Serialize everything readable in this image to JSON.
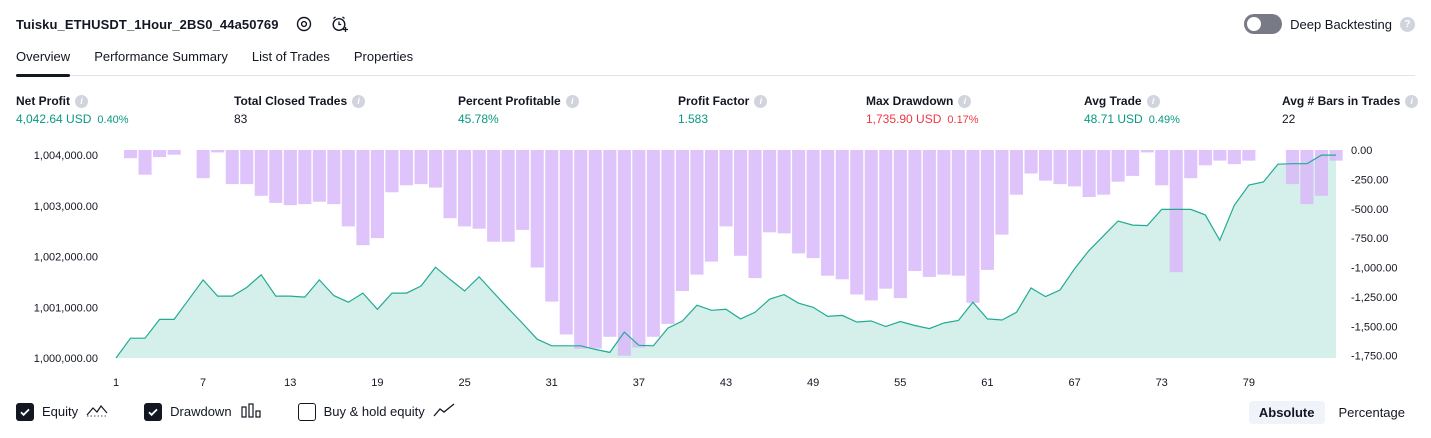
{
  "header": {
    "title": "Tuisku_ETHUSDT_1Hour_2BS0_44a50769",
    "deep_backtesting_label": "Deep Backtesting"
  },
  "tabs": [
    {
      "label": "Overview",
      "active": true
    },
    {
      "label": "Performance Summary",
      "active": false
    },
    {
      "label": "List of Trades",
      "active": false
    },
    {
      "label": "Properties",
      "active": false
    }
  ],
  "metrics": {
    "net_profit": {
      "label": "Net Profit",
      "value": "4,042.64 USD",
      "sub": "0.40%"
    },
    "total_closed_trades": {
      "label": "Total Closed Trades",
      "value": "83"
    },
    "percent_profitable": {
      "label": "Percent Profitable",
      "value": "45.78%"
    },
    "profit_factor": {
      "label": "Profit Factor",
      "value": "1.583"
    },
    "max_drawdown": {
      "label": "Max Drawdown",
      "value": "1,735.90 USD",
      "sub": "0.17%"
    },
    "avg_trade": {
      "label": "Avg Trade",
      "value": "48.71 USD",
      "sub": "0.49%"
    },
    "avg_bars": {
      "label": "Avg # Bars in Trades",
      "value": "22"
    }
  },
  "legend": {
    "equity": "Equity",
    "drawdown": "Drawdown",
    "buy_hold": "Buy & hold equity"
  },
  "mode": {
    "absolute": "Absolute",
    "percentage": "Percentage"
  },
  "colors": {
    "equity_line": "#22ab94",
    "equity_fill": "#d5efea",
    "drawdown_bar": "#d9b8fa",
    "positive": "#089981",
    "negative": "#f23645"
  },
  "chart_data": {
    "type": "area",
    "x_ticks": [
      "1",
      "7",
      "13",
      "19",
      "25",
      "31",
      "37",
      "43",
      "49",
      "55",
      "61",
      "67",
      "73",
      "79"
    ],
    "y_left_ticks": [
      "1,004,000.00",
      "1,003,000.00",
      "1,002,000.00",
      "1,001,000.00",
      "1,000,000.00"
    ],
    "y_left_values": [
      1004000,
      1003000,
      1002000,
      1001000,
      1000000
    ],
    "y_right_ticks": [
      "0.00",
      "-250.00",
      "-500.00",
      "-750.00",
      "-1,000.00",
      "-1,250.00",
      "-1,500.00",
      "-1,750.00"
    ],
    "y_right_values": [
      0,
      -250,
      -500,
      -750,
      -1000,
      -1250,
      -1500,
      -1750
    ],
    "x_range": [
      1,
      85
    ],
    "y_left_range": [
      1000000,
      1004100
    ],
    "y_right_range": [
      -1770,
      0
    ],
    "series": [
      {
        "name": "Equity",
        "values": [
          1000000,
          1000390,
          1000390,
          1000760,
          1000760,
          1001150,
          1001540,
          1001220,
          1001220,
          1001390,
          1001640,
          1001220,
          1001220,
          1001200,
          1001540,
          1001230,
          1001100,
          1001280,
          1000960,
          1001280,
          1001280,
          1001420,
          1001790,
          1001550,
          1001320,
          1001600,
          1001290,
          1000980,
          1000680,
          1000370,
          1000240,
          1000240,
          1000240,
          1000170,
          1000110,
          1000510,
          1000250,
          1000240,
          1000590,
          1000730,
          1001040,
          1000940,
          1000960,
          1000770,
          1000900,
          1001160,
          1001250,
          1001080,
          1001000,
          1000820,
          1000840,
          1000710,
          1000730,
          1000620,
          1000720,
          1000640,
          1000580,
          1000690,
          1000740,
          1001100,
          1000770,
          1000750,
          1000900,
          1001380,
          1001210,
          1001340,
          1001760,
          1002120,
          1002410,
          1002700,
          1002620,
          1002610,
          1002930,
          1002930,
          1002930,
          1002820,
          1002320,
          1003010,
          1003410,
          1003470,
          1003820,
          1003830,
          1003830,
          1004000,
          1004000
        ],
        "y_axis": "left"
      },
      {
        "name": "Drawdown",
        "values": [
          0,
          -70,
          -210,
          -60,
          -40,
          0,
          -240,
          -20,
          -290,
          -290,
          -390,
          -450,
          -470,
          -460,
          -440,
          -460,
          -650,
          -810,
          -750,
          -360,
          -300,
          -290,
          -320,
          -580,
          -650,
          -670,
          -780,
          -780,
          -680,
          -1000,
          -1290,
          -1570,
          -1690,
          -1690,
          -1590,
          -1750,
          -1680,
          -1590,
          -1480,
          -1200,
          -1060,
          -950,
          -650,
          -900,
          -1090,
          -700,
          -710,
          -880,
          -920,
          -1070,
          -1100,
          -1230,
          -1280,
          -1180,
          -1260,
          -1030,
          -1080,
          -1060,
          -1070,
          -1300,
          -1020,
          -720,
          -380,
          -200,
          -260,
          -290,
          -310,
          -400,
          -380,
          -270,
          -220,
          -20,
          -300,
          -1040,
          -240,
          -130,
          -90,
          -120,
          -90,
          0,
          0,
          -290,
          -460,
          -390,
          -90
        ],
        "y_axis": "right"
      }
    ]
  }
}
